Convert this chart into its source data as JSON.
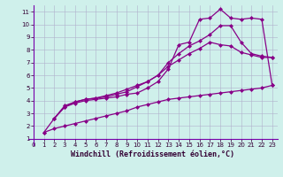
{
  "xlabel": "Windchill (Refroidissement éolien,°C)",
  "bg_color": "#cff0eb",
  "grid_color": "#b0b0cc",
  "line_color": "#880088",
  "spine_color": "#7700aa",
  "xlim": [
    -0.5,
    23.5
  ],
  "ylim": [
    0.5,
    11.5
  ],
  "xticks": [
    0,
    1,
    2,
    3,
    4,
    5,
    6,
    7,
    8,
    9,
    10,
    11,
    12,
    13,
    14,
    15,
    16,
    17,
    18,
    19,
    20,
    21,
    22,
    23
  ],
  "yticks": [
    1,
    2,
    3,
    4,
    5,
    6,
    7,
    8,
    9,
    10,
    11
  ],
  "line1_x": [
    1,
    2,
    3,
    4,
    5,
    6,
    7,
    8,
    9,
    10,
    11,
    12,
    13,
    14,
    15,
    16,
    17,
    18,
    19,
    20,
    21,
    22,
    23
  ],
  "line1_y": [
    1.5,
    1.8,
    2.0,
    2.2,
    2.4,
    2.6,
    2.8,
    3.0,
    3.2,
    3.5,
    3.7,
    3.9,
    4.1,
    4.2,
    4.3,
    4.4,
    4.5,
    4.6,
    4.7,
    4.8,
    4.9,
    5.0,
    5.2
  ],
  "line2_x": [
    2,
    3,
    4,
    5,
    6,
    7,
    8,
    9,
    10,
    11,
    12,
    13,
    14,
    15,
    16,
    17,
    18,
    19,
    20,
    21,
    22,
    23
  ],
  "line2_y": [
    2.6,
    3.5,
    3.8,
    4.0,
    4.1,
    4.2,
    4.3,
    4.5,
    4.6,
    5.0,
    5.5,
    6.5,
    8.4,
    8.6,
    10.4,
    10.5,
    11.2,
    10.5,
    10.4,
    10.5,
    10.4,
    5.2
  ],
  "line3_x": [
    2,
    3,
    4,
    5,
    6,
    7,
    8,
    9,
    10,
    11,
    12,
    13,
    14,
    15,
    16,
    17,
    18,
    19,
    20,
    21,
    22,
    23
  ],
  "line3_y": [
    2.6,
    3.5,
    3.9,
    4.1,
    4.2,
    4.3,
    4.5,
    4.7,
    5.1,
    5.5,
    6.0,
    7.0,
    7.7,
    8.3,
    8.7,
    9.2,
    9.9,
    9.9,
    8.6,
    7.7,
    7.5,
    7.4
  ],
  "line4_x": [
    1,
    2,
    3,
    4,
    5,
    6,
    7,
    8,
    9,
    10,
    11,
    12,
    13,
    14,
    15,
    16,
    17,
    18,
    19,
    20,
    21,
    22,
    23
  ],
  "line4_y": [
    1.5,
    2.6,
    3.6,
    3.9,
    4.1,
    4.2,
    4.4,
    4.6,
    4.9,
    5.2,
    5.5,
    6.0,
    6.7,
    7.2,
    7.7,
    8.1,
    8.6,
    8.4,
    8.3,
    7.8,
    7.6,
    7.4,
    7.4
  ],
  "marker_size": 2.5,
  "linewidth": 0.9,
  "tick_fontsize": 5.0,
  "xlabel_fontsize": 6.0
}
